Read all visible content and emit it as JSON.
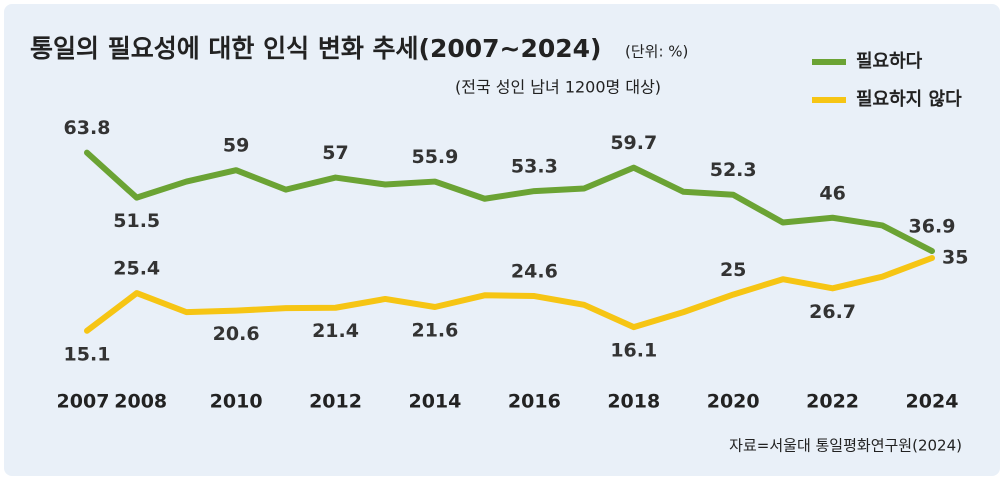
{
  "chart_data": {
    "type": "line",
    "title": "통일의 필요성에 대한 인식 변화 추세(2007~2024)",
    "unit_note": "(단위: %)",
    "subtitle": "(전국 성인 남녀 1200명 대상)",
    "source": "자료=서울대 통일평화연구원(2024)",
    "categories": [
      "2007",
      "2008",
      null,
      "2010",
      null,
      "2012",
      null,
      "2014",
      null,
      "2016",
      null,
      "2018",
      null,
      "2020",
      null,
      "2022",
      null,
      "2024"
    ],
    "series": [
      {
        "name": "필요하다",
        "color": "#6ba334",
        "values": [
          63.8,
          51.5,
          55.9,
          59,
          53.7,
          57,
          55.1,
          55.9,
          51.2,
          53.3,
          54,
          59.7,
          53.1,
          52.3,
          44.7,
          46,
          43.9,
          36.9
        ],
        "value_labels": [
          "63.8",
          "51.5",
          null,
          "59",
          null,
          "57",
          null,
          "55.9",
          null,
          "53.3",
          null,
          "59.7",
          null,
          "52.3",
          null,
          "46",
          null,
          "36.9"
        ]
      },
      {
        "name": "필요하지 않다",
        "color": "#f6c514",
        "values": [
          15.1,
          25.4,
          20.2,
          20.6,
          21.3,
          21.4,
          23.8,
          21.6,
          24.8,
          24.6,
          22.2,
          16.1,
          20.2,
          25,
          29.2,
          26.7,
          29.9,
          35
        ],
        "value_labels": [
          "15.1",
          "25.4",
          null,
          "20.6",
          null,
          "21.4",
          null,
          "21.6",
          null,
          "24.6",
          null,
          "16.1",
          null,
          "25",
          null,
          "26.7",
          null,
          "35"
        ]
      }
    ],
    "ylim": [
      0,
      70
    ]
  }
}
